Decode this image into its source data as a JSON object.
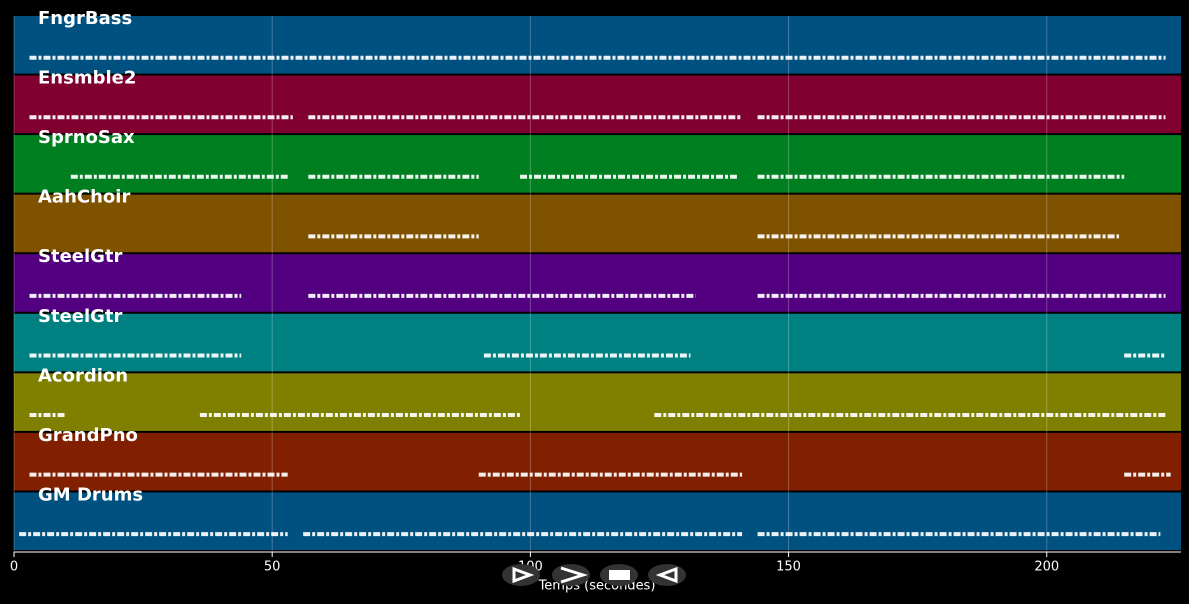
{
  "chart_data": {
    "type": "pianoroll",
    "x_label": "Temps (secondes)",
    "xlim": [
      0,
      226
    ],
    "xticks": [
      0,
      50,
      100,
      150,
      200
    ],
    "grid": true,
    "tracks": [
      {
        "name": "FngrBass",
        "color": "#005080",
        "segments": [
          [
            3,
            223
          ]
        ]
      },
      {
        "name": "Ensmble2",
        "color": "#800030",
        "segments": [
          [
            3,
            54
          ],
          [
            57,
            141
          ],
          [
            144,
            223
          ]
        ]
      },
      {
        "name": "SprnoSax",
        "color": "#007f20",
        "segments": [
          [
            11,
            53
          ],
          [
            57,
            90
          ],
          [
            98,
            140
          ],
          [
            144,
            215
          ]
        ]
      },
      {
        "name": "AahChoir",
        "color": "#7f5200",
        "segments": [
          [
            57,
            90
          ],
          [
            144,
            214
          ]
        ]
      },
      {
        "name": "SteelGtr",
        "color": "#52007f",
        "segments": [
          [
            3,
            44
          ],
          [
            57,
            132
          ],
          [
            144,
            223
          ]
        ]
      },
      {
        "name": "SteelGtr",
        "color": "#008080",
        "segments": [
          [
            3,
            44
          ],
          [
            91,
            131
          ],
          [
            215,
            223
          ]
        ]
      },
      {
        "name": "Acordion",
        "color": "#808000",
        "segments": [
          [
            3,
            10
          ],
          [
            36,
            98
          ],
          [
            124,
            223
          ]
        ]
      },
      {
        "name": "GrandPno",
        "color": "#802000",
        "segments": [
          [
            3,
            53
          ],
          [
            90,
            141
          ],
          [
            215,
            224
          ]
        ]
      },
      {
        "name": "GM Drums",
        "color": "#005080",
        "segments": [
          [
            1,
            53
          ],
          [
            56,
            141
          ],
          [
            144,
            222
          ]
        ]
      }
    ]
  }
}
